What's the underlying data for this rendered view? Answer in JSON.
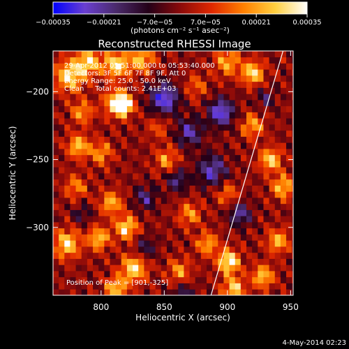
{
  "chart_data": {
    "type": "heatmap",
    "title": "Reconstructed RHESSI Image",
    "annotations": [
      "29-Apr-2012 05:51:00.000 to 05:53:40.000",
      "Detectors: 3F 5F 6F 7F 8F 9F, Att 0",
      "Energy Range: 25.0 - 50.0 keV",
      "Clean     Total counts: 2.41E+03"
    ],
    "peak_label": "Position of Peak = [901,-325]",
    "peak": [
      901,
      -325
    ],
    "xlabel": "Heliocentric X (arcsec)",
    "ylabel": "Heliocentric Y (arcsec)",
    "xlim": [
      762,
      952
    ],
    "ylim": [
      -350,
      -170
    ],
    "xticks": [
      {
        "value": 800,
        "label": "800"
      },
      {
        "value": 850,
        "label": "850"
      },
      {
        "value": 900,
        "label": "900"
      },
      {
        "value": 950,
        "label": "950"
      }
    ],
    "yticks": [
      {
        "value": -200,
        "label": "−200"
      },
      {
        "value": -250,
        "label": "−250"
      },
      {
        "value": -300,
        "label": "−300"
      }
    ],
    "colorbar": {
      "unit_label": "(photons cm⁻² s⁻¹ asec⁻²)",
      "range": [
        -0.00035,
        0.00035
      ],
      "ticks": [
        {
          "value": -0.00035,
          "label": "−0.00035"
        },
        {
          "value": -0.00021,
          "label": "−0.00021"
        },
        {
          "value": -7e-05,
          "label": "−7.0e−05"
        },
        {
          "value": 7e-05,
          "label": "7.0e−05"
        },
        {
          "value": 0.00021,
          "label": "0.00021"
        },
        {
          "value": 0.00035,
          "label": "0.00035"
        }
      ],
      "colors": [
        "#0000ff",
        "#6a3fd0",
        "#4a2a6a",
        "#240018",
        "#8a0a0a",
        "#e02800",
        "#ff8000",
        "#ffd040",
        "#ffffff"
      ]
    },
    "limb_line": [
      [
        887,
        -350
      ],
      [
        944,
        -170
      ]
    ],
    "blobs": [
      [
        775,
        -188,
        0.0003,
        8
      ],
      [
        790,
        -178,
        0.00028,
        7
      ],
      [
        812,
        -180,
        0.0003,
        7
      ],
      [
        832,
        -176,
        0.00024,
        7
      ],
      [
        900,
        -178,
        0.00022,
        7
      ],
      [
        920,
        -186,
        0.0003,
        6
      ],
      [
        875,
        -196,
        0.00014,
        6
      ],
      [
        812,
        -208,
        0.00028,
        7
      ],
      [
        818,
        -210,
        0.00033,
        5
      ],
      [
        785,
        -215,
        0.0002,
        6
      ],
      [
        782,
        -240,
        0.00026,
        6
      ],
      [
        800,
        -245,
        0.0002,
        6
      ],
      [
        845,
        -226,
        0.00012,
        6
      ],
      [
        852,
        -250,
        0.0002,
        6
      ],
      [
        920,
        -225,
        0.00022,
        6
      ],
      [
        934,
        -250,
        0.00028,
        6
      ],
      [
        944,
        -270,
        0.00026,
        6
      ],
      [
        780,
        -270,
        0.00018,
        6
      ],
      [
        808,
        -282,
        0.00024,
        6
      ],
      [
        773,
        -312,
        0.0003,
        7
      ],
      [
        798,
        -308,
        0.00026,
        6
      ],
      [
        820,
        -300,
        0.0003,
        6
      ],
      [
        826,
        -330,
        0.0003,
        7
      ],
      [
        812,
        -345,
        0.00026,
        6
      ],
      [
        870,
        -290,
        0.0002,
        6
      ],
      [
        884,
        -312,
        0.00022,
        6
      ],
      [
        862,
        -332,
        0.0002,
        6
      ],
      [
        901,
        -325,
        0.00035,
        6
      ],
      [
        905,
        -345,
        0.00028,
        6
      ],
      [
        928,
        -336,
        0.00026,
        6
      ],
      [
        940,
        -310,
        0.00024,
        6
      ],
      [
        900,
        -275,
        0.00016,
        6
      ],
      [
        850,
        -205,
        -0.0003,
        8
      ],
      [
        870,
        -230,
        -0.00022,
        7
      ],
      [
        895,
        -215,
        -0.0003,
        7
      ],
      [
        888,
        -258,
        -0.00024,
        8
      ],
      [
        860,
        -265,
        -0.00018,
        6
      ],
      [
        835,
        -278,
        -0.00018,
        6
      ],
      [
        910,
        -290,
        -0.00022,
        6
      ],
      [
        835,
        -315,
        -0.00014,
        6
      ],
      [
        785,
        -290,
        -0.00012,
        5
      ],
      [
        930,
        -205,
        -0.00014,
        5
      ],
      [
        865,
        -350,
        -0.00016,
        6
      ]
    ],
    "grid": false
  },
  "footer": {
    "timestamp": "4-May-2014 02:23"
  }
}
